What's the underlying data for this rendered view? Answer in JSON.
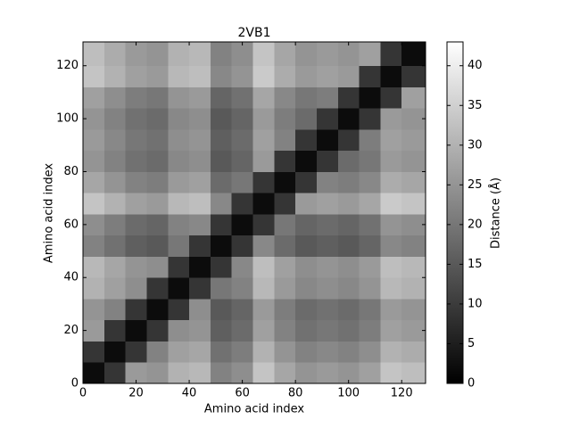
{
  "chart_data": {
    "type": "heatmap",
    "title": "2VB1",
    "xlabel": "Amino acid index",
    "ylabel": "Amino acid index",
    "colorbar_label": "Distance (Å)",
    "colormap": "gray",
    "xbins": [
      0,
      8,
      16,
      24,
      32,
      40,
      48,
      56,
      64,
      72,
      80,
      88,
      96,
      104,
      112,
      120,
      129
    ],
    "ybins": [
      0,
      8,
      16,
      24,
      32,
      40,
      48,
      56,
      64,
      72,
      80,
      88,
      96,
      104,
      112,
      120,
      129
    ],
    "values": [
      [
        2,
        9,
        26,
        25,
        30,
        31,
        22,
        24,
        33,
        28,
        25,
        26,
        25,
        27,
        33,
        32
      ],
      [
        9,
        2,
        9,
        22,
        27,
        28,
        19,
        21,
        30,
        25,
        22,
        23,
        22,
        24,
        30,
        29
      ],
      [
        26,
        9,
        2,
        9,
        24,
        25,
        16,
        18,
        27,
        22,
        19,
        20,
        19,
        21,
        27,
        26
      ],
      [
        25,
        22,
        9,
        2,
        9,
        24,
        15,
        17,
        26,
        21,
        18,
        19,
        18,
        20,
        26,
        25
      ],
      [
        30,
        27,
        24,
        9,
        2,
        9,
        20,
        22,
        31,
        26,
        23,
        24,
        23,
        25,
        31,
        30
      ],
      [
        31,
        28,
        25,
        24,
        9,
        2,
        9,
        23,
        32,
        27,
        24,
        25,
        24,
        26,
        32,
        31
      ],
      [
        22,
        19,
        16,
        15,
        20,
        9,
        2,
        9,
        23,
        18,
        15,
        16,
        15,
        17,
        23,
        22
      ],
      [
        24,
        21,
        18,
        17,
        22,
        23,
        9,
        2,
        9,
        20,
        17,
        18,
        17,
        19,
        25,
        24
      ],
      [
        33,
        30,
        27,
        26,
        31,
        32,
        23,
        9,
        2,
        9,
        26,
        27,
        26,
        28,
        34,
        33
      ],
      [
        28,
        25,
        22,
        21,
        26,
        27,
        18,
        20,
        9,
        2,
        9,
        22,
        21,
        23,
        29,
        28
      ],
      [
        25,
        22,
        19,
        18,
        23,
        24,
        15,
        17,
        26,
        9,
        2,
        9,
        18,
        20,
        26,
        25
      ],
      [
        26,
        23,
        20,
        19,
        24,
        25,
        16,
        18,
        27,
        22,
        9,
        2,
        9,
        21,
        27,
        26
      ],
      [
        25,
        22,
        19,
        18,
        23,
        24,
        15,
        17,
        26,
        21,
        18,
        9,
        2,
        9,
        26,
        25
      ],
      [
        27,
        24,
        21,
        20,
        25,
        26,
        17,
        19,
        28,
        23,
        20,
        21,
        9,
        2,
        9,
        27
      ],
      [
        33,
        30,
        27,
        26,
        31,
        32,
        23,
        25,
        34,
        29,
        26,
        27,
        26,
        9,
        2,
        9
      ],
      [
        32,
        29,
        26,
        25,
        30,
        31,
        22,
        24,
        33,
        28,
        25,
        26,
        25,
        27,
        9,
        2
      ]
    ],
    "xlim": [
      0,
      129
    ],
    "ylim": [
      0,
      129
    ],
    "xticks": [
      0,
      20,
      40,
      60,
      80,
      100,
      120
    ],
    "yticks": [
      0,
      20,
      40,
      60,
      80,
      100,
      120
    ],
    "zlim": [
      0,
      43
    ],
    "zticks": [
      0,
      5,
      10,
      15,
      20,
      25,
      30,
      35,
      40
    ]
  }
}
